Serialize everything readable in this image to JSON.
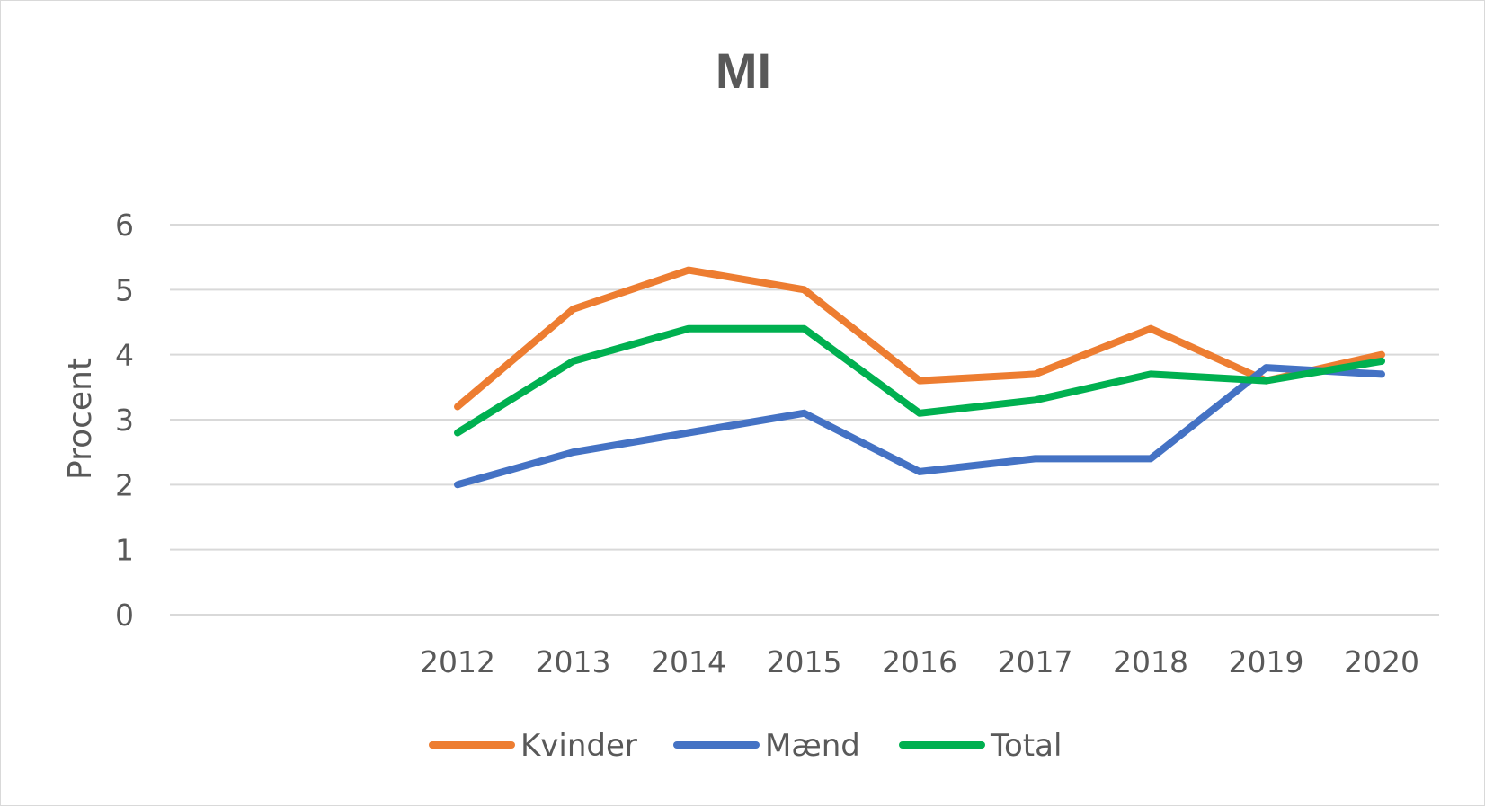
{
  "chart_data": {
    "type": "line",
    "title": "MI",
    "xlabel": "",
    "ylabel": "Procent",
    "categories": [
      "2012",
      "2013",
      "2014",
      "2015",
      "2016",
      "2017",
      "2018",
      "2019",
      "2020"
    ],
    "ylim": [
      0,
      6
    ],
    "yticks": [
      "0",
      "1",
      "2",
      "3",
      "4",
      "5",
      "6"
    ],
    "grid": true,
    "legend_position": "bottom",
    "series": [
      {
        "name": "Kvinder",
        "color": "#ED7D31",
        "values": [
          3.2,
          4.7,
          5.3,
          5.0,
          3.6,
          3.7,
          4.4,
          3.6,
          4.0
        ]
      },
      {
        "name": "Mænd",
        "color": "#4472C4",
        "values": [
          2.0,
          2.5,
          2.8,
          3.1,
          2.2,
          2.4,
          2.4,
          3.8,
          3.7
        ]
      },
      {
        "name": "Total",
        "color": "#00B050",
        "values": [
          2.8,
          3.9,
          4.4,
          4.4,
          3.1,
          3.3,
          3.7,
          3.6,
          3.9
        ]
      }
    ]
  }
}
